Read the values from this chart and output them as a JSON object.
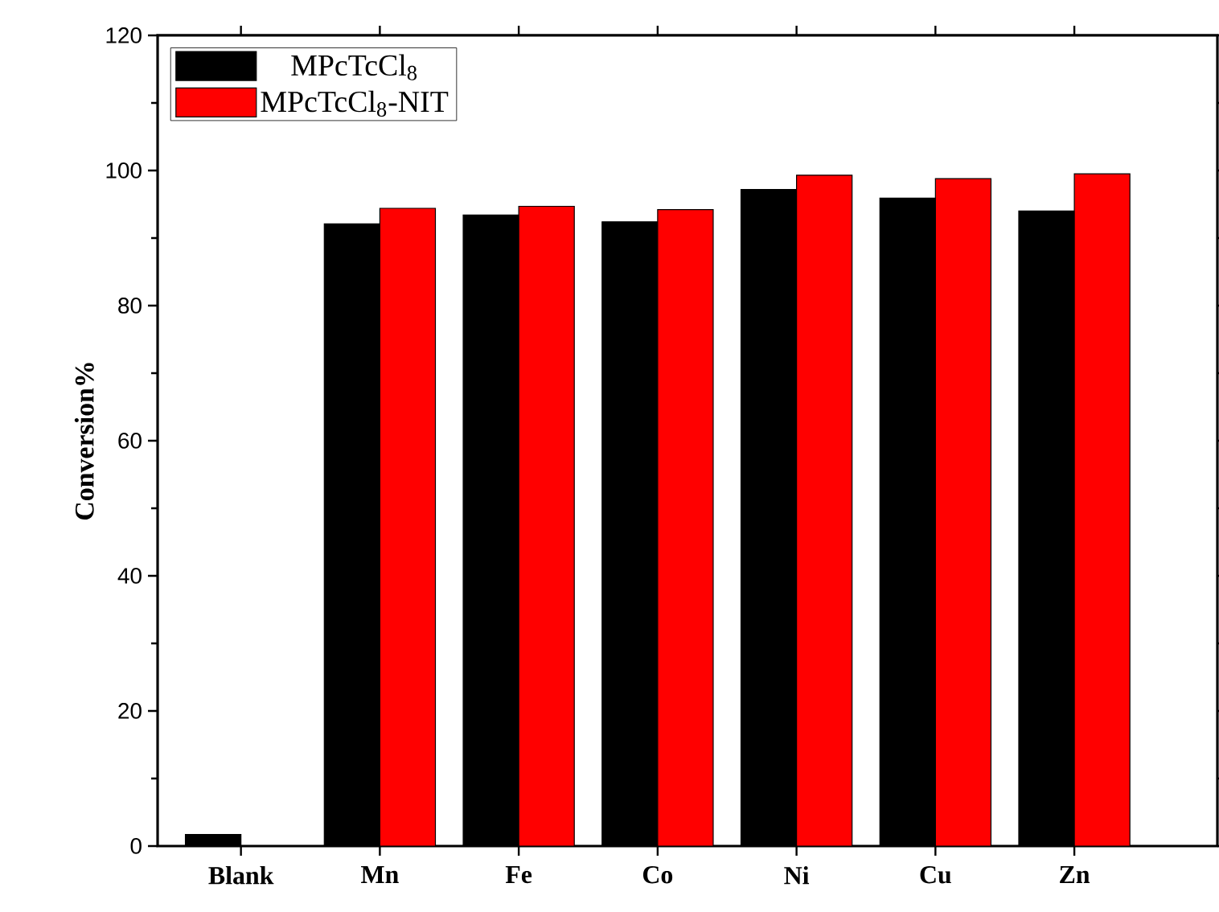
{
  "chart_data": {
    "type": "bar",
    "ylabel": "Conversion%",
    "categories": [
      "Blank",
      "Mn",
      "Fe",
      "Co",
      "Ni",
      "Cu",
      "Zn"
    ],
    "series": [
      {
        "name": "MPcTcCl$_{8}$",
        "color": "#000000",
        "values": [
          1.7,
          92.1,
          93.4,
          92.4,
          97.2,
          95.9,
          94.0
        ]
      },
      {
        "name": "MPcTcCl$_{8}$-NIT",
        "color": "#ff0000",
        "values": [
          0,
          94.4,
          94.7,
          94.2,
          99.3,
          98.8,
          99.5
        ]
      }
    ],
    "ylim": [
      0,
      120
    ],
    "yticks": [
      0,
      20,
      40,
      60,
      80,
      100,
      120
    ],
    "grid": false,
    "legend": "top left"
  }
}
